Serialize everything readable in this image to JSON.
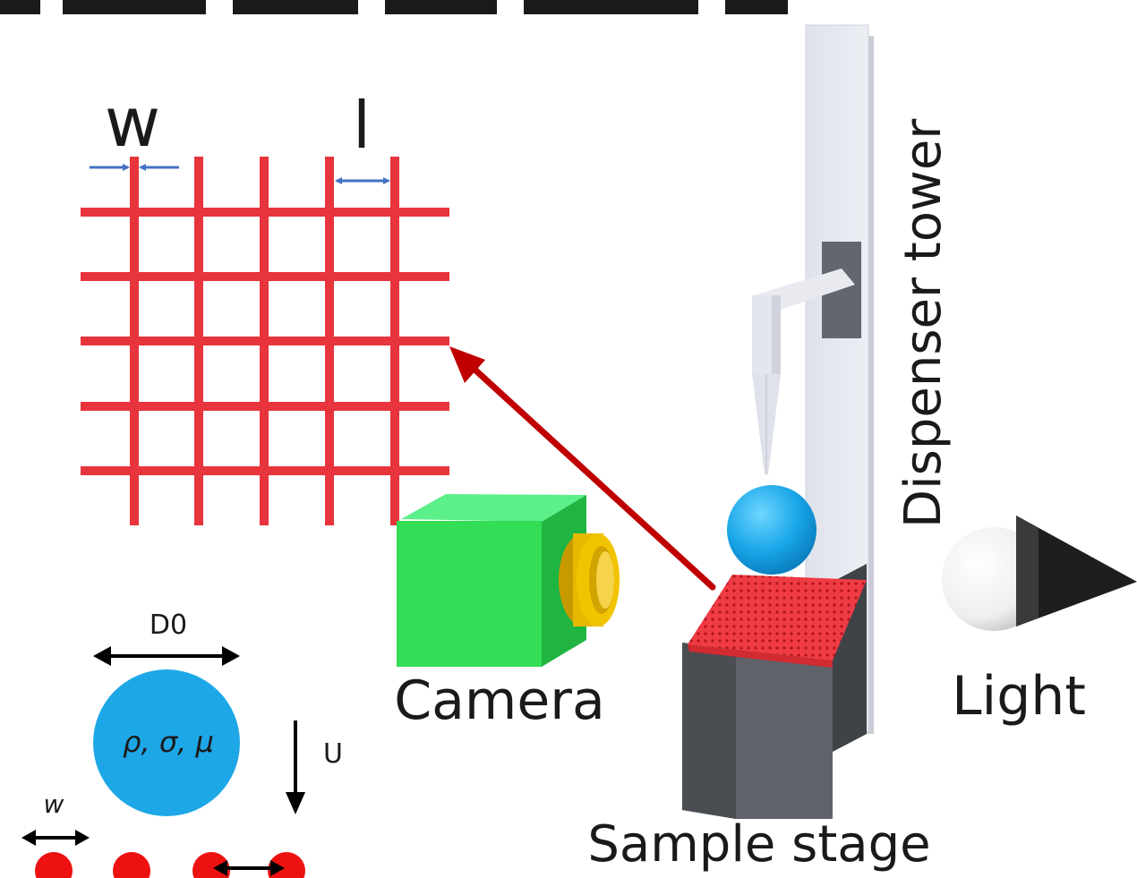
{
  "grid": {
    "label_w": "w",
    "label_l": "l"
  },
  "labels": {
    "dispenser": "Dispenser tower",
    "camera": "Camera",
    "light": "Light",
    "stage": "Sample stage"
  },
  "droplet": {
    "diameter_label": "D0",
    "properties": "ρ, σ, μ",
    "velocity_label": "U",
    "wire_label": "w"
  },
  "colors": {
    "grid_red": "#e8343c",
    "arrow_blue": "#4472c4",
    "droplet_blue": "#1ea7e6",
    "camera_green": "#33dd55",
    "lens_yellow": "#f2c400",
    "stage_gray": "#5c6066",
    "pointer_red": "#c00000"
  }
}
